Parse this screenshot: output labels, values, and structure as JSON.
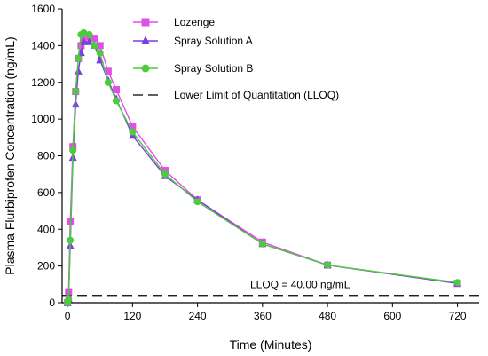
{
  "chart_data": {
    "type": "line",
    "xlabel": "Time (Minutes)",
    "ylabel": "Plasma Flurbiprofen Concentration (ng/mL)",
    "xlim": [
      -10,
      760
    ],
    "ylim": [
      0,
      1600
    ],
    "x_ticks": [
      0,
      120,
      240,
      360,
      480,
      600,
      720
    ],
    "y_ticks": [
      0,
      200,
      400,
      600,
      800,
      1000,
      1200,
      1400,
      1600
    ],
    "x_tick_labels": [
      "0",
      "120",
      "240",
      "360",
      "480",
      "600",
      "720"
    ],
    "y_tick_labels": [
      "0",
      "200",
      "400",
      "600",
      "800",
      "1000",
      "1200",
      "1400",
      "1600"
    ],
    "grid": false,
    "legend_position": "top-center",
    "series": [
      {
        "name": "Lozenge",
        "color": "#e14fe6",
        "marker": "square",
        "x": [
          0,
          2,
          5,
          10,
          15,
          20,
          25,
          30,
          40,
          50,
          60,
          75,
          90,
          120,
          180,
          240,
          360,
          480,
          720
        ],
        "y": [
          0,
          60,
          440,
          850,
          1150,
          1330,
          1400,
          1430,
          1450,
          1440,
          1400,
          1260,
          1160,
          960,
          720,
          560,
          330,
          205,
          105
        ]
      },
      {
        "name": "Spray Solution A",
        "color": "#7b3fe0",
        "marker": "triangle",
        "x": [
          0,
          2,
          5,
          10,
          15,
          20,
          25,
          30,
          40,
          50,
          60,
          75,
          90,
          120,
          180,
          240,
          360,
          480,
          720
        ],
        "y": [
          0,
          20,
          310,
          790,
          1080,
          1260,
          1360,
          1420,
          1420,
          1400,
          1320,
          1210,
          1110,
          910,
          690,
          560,
          320,
          205,
          105
        ]
      },
      {
        "name": "Spray Solution B",
        "color": "#4ccc3c",
        "marker": "circle",
        "x": [
          0,
          2,
          5,
          10,
          15,
          20,
          25,
          30,
          40,
          50,
          60,
          75,
          90,
          120,
          180,
          240,
          360,
          480,
          720
        ],
        "y": [
          0,
          20,
          340,
          830,
          1150,
          1330,
          1460,
          1470,
          1460,
          1400,
          1360,
          1200,
          1100,
          930,
          700,
          550,
          320,
          205,
          110
        ]
      }
    ],
    "reference_line": {
      "name": "Lower Limit of Quantitation (LLOQ)",
      "y": 40,
      "style": "dashed",
      "color": "#000000",
      "annotation": "LLOQ = 40.00 ng/mL"
    }
  }
}
